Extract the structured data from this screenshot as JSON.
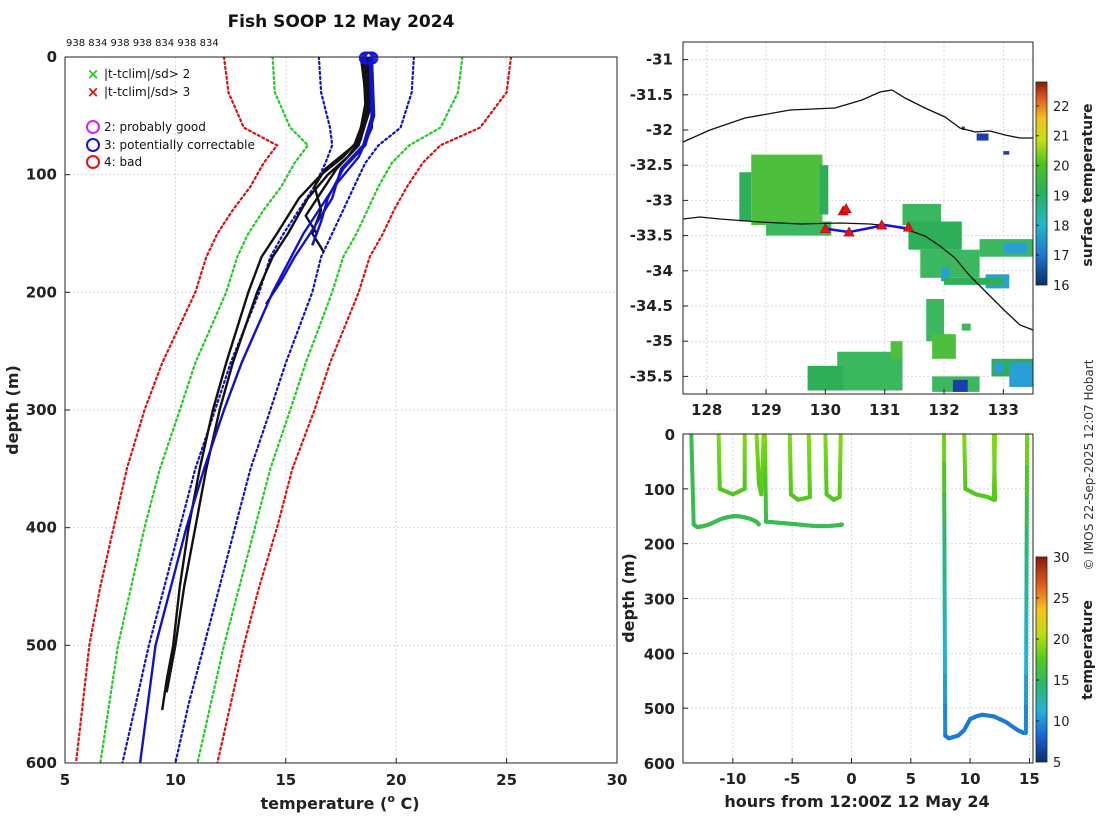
{
  "chart_data": [
    {
      "type": "line",
      "name": "profile-panel",
      "title": "Fish SOOP 12 May 2024",
      "platform_ids": "938 834 938 938 834 938 834",
      "xlabel": "temperature (°C)",
      "xlabel_main": "temperature (",
      "xlabel_sup": "o",
      "xlabel_tail": " C)",
      "ylabel": "depth (m)",
      "xlim": [
        5,
        30
      ],
      "ylim": [
        600,
        0
      ],
      "xticks": [
        5,
        10,
        15,
        20,
        25,
        30
      ],
      "yticks": [
        0,
        100,
        200,
        300,
        400,
        500,
        600
      ],
      "legend": [
        {
          "marker": "x",
          "color": "#22cc22",
          "label": "|t-tclim|/sd> 2"
        },
        {
          "marker": "x",
          "color": "#dd1111",
          "label": "|t-tclim|/sd> 3"
        },
        {
          "marker": "o",
          "color": "#dd22dd",
          "label": "2: probably good"
        },
        {
          "marker": "o",
          "color": "#1111ee",
          "label": "3: potentially correctable"
        },
        {
          "marker": "o",
          "color": "#ee1111",
          "label": "4: bad"
        }
      ],
      "climatology_envelopes": [
        {
          "name": "clim-red-left",
          "color": "#dd1111",
          "depths": [
            0,
            30,
            60,
            75,
            90,
            110,
            130,
            150,
            170,
            200,
            260,
            300,
            350,
            400,
            450,
            500,
            550,
            600
          ],
          "temps": [
            12.2,
            12.4,
            13.1,
            14.6,
            14.0,
            13.4,
            12.6,
            11.9,
            11.4,
            10.9,
            9.4,
            8.6,
            7.8,
            7.2,
            6.6,
            6.1,
            5.8,
            5.5
          ]
        },
        {
          "name": "clim-green-left",
          "color": "#22cc22",
          "depths": [
            0,
            30,
            60,
            75,
            90,
            110,
            130,
            150,
            170,
            200,
            260,
            300,
            350,
            400,
            450,
            500,
            550,
            600
          ],
          "temps": [
            14.4,
            14.5,
            15.2,
            16.0,
            15.4,
            14.8,
            14.0,
            13.3,
            12.8,
            12.3,
            10.9,
            10.2,
            9.3,
            8.6,
            8.0,
            7.4,
            7.0,
            6.6
          ]
        },
        {
          "name": "clim-blue-left",
          "color": "#1111cc",
          "depths": [
            0,
            30,
            60,
            75,
            90,
            110,
            130,
            150,
            170,
            200,
            260,
            300,
            350,
            400,
            450,
            500,
            550,
            600
          ],
          "temps": [
            16.5,
            16.6,
            17.0,
            17.1,
            16.8,
            16.3,
            15.6,
            14.9,
            14.3,
            13.8,
            12.5,
            11.8,
            10.9,
            10.2,
            9.5,
            8.8,
            8.2,
            7.6
          ]
        },
        {
          "name": "clim-blue-right",
          "color": "#1111cc",
          "depths": [
            0,
            30,
            60,
            75,
            90,
            110,
            130,
            150,
            170,
            200,
            260,
            300,
            350,
            400,
            450,
            500,
            550,
            600
          ],
          "temps": [
            20.8,
            20.7,
            20.2,
            19.2,
            18.6,
            18.1,
            17.6,
            17.1,
            16.6,
            16.2,
            15.0,
            14.3,
            13.4,
            12.7,
            12.0,
            11.3,
            10.6,
            10.0
          ]
        },
        {
          "name": "clim-green-right",
          "color": "#22cc22",
          "depths": [
            0,
            30,
            60,
            75,
            90,
            110,
            130,
            150,
            170,
            200,
            260,
            300,
            350,
            400,
            450,
            500,
            550,
            600
          ],
          "temps": [
            23.0,
            22.8,
            22.0,
            20.6,
            19.8,
            19.2,
            18.7,
            18.2,
            17.6,
            17.1,
            15.9,
            15.2,
            14.3,
            13.6,
            12.9,
            12.2,
            11.6,
            11.0
          ]
        },
        {
          "name": "clim-red-right",
          "color": "#dd1111",
          "depths": [
            0,
            30,
            60,
            75,
            90,
            110,
            130,
            150,
            170,
            200,
            260,
            300,
            350,
            400,
            450,
            500,
            550,
            600
          ],
          "temps": [
            25.2,
            25.0,
            23.8,
            22.0,
            21.2,
            20.5,
            19.9,
            19.4,
            18.8,
            18.3,
            17.0,
            16.3,
            15.3,
            14.6,
            13.8,
            13.1,
            12.5,
            11.9
          ]
        }
      ],
      "profiles": [
        {
          "color": "#111111",
          "depths": [
            0,
            40,
            70,
            85,
            100,
            120,
            150,
            170,
            200,
            260,
            300,
            350,
            400,
            450,
            500,
            530,
            555
          ],
          "temps": [
            18.5,
            18.6,
            18.3,
            17.6,
            16.6,
            15.6,
            14.6,
            13.9,
            13.3,
            12.3,
            11.7,
            11.1,
            10.6,
            10.2,
            9.9,
            9.6,
            9.4
          ]
        },
        {
          "color": "#111111",
          "depths": [
            0,
            40,
            70,
            85,
            100,
            120,
            150,
            170,
            200,
            260,
            300,
            350,
            400,
            450,
            500,
            540
          ],
          "temps": [
            18.6,
            18.7,
            18.4,
            17.8,
            16.9,
            16.0,
            15.1,
            14.4,
            13.7,
            12.6,
            12.0,
            11.4,
            10.9,
            10.4,
            10.0,
            9.6
          ]
        },
        {
          "color": "#111111",
          "depths": [
            0,
            45,
            75,
            95,
            110,
            130,
            150,
            165
          ],
          "temps": [
            18.4,
            18.7,
            18.1,
            16.8,
            16.3,
            16.6,
            16.2,
            16.7
          ]
        },
        {
          "color": "#111111",
          "depths": [
            0,
            45,
            75,
            95,
            115,
            135,
            150,
            160
          ],
          "temps": [
            18.7,
            18.8,
            18.3,
            17.3,
            16.6,
            15.9,
            16.4,
            16.2
          ]
        },
        {
          "color": "#1111cc",
          "depths": [
            0,
            50,
            75,
            95,
            120,
            150,
            170,
            190,
            210
          ],
          "temps": [
            18.8,
            18.9,
            18.5,
            17.5,
            17.1,
            16.1,
            15.4,
            14.8,
            14.1
          ]
        },
        {
          "color": "#1111cc",
          "depths": [
            0,
            50,
            75,
            95,
            120,
            140,
            160
          ],
          "temps": [
            18.9,
            19.0,
            18.6,
            17.6,
            16.9,
            16.6,
            16.2
          ]
        },
        {
          "color": "#1111cc",
          "depths": [
            0,
            60,
            85,
            110,
            150,
            200,
            260,
            300,
            350,
            400,
            450,
            500,
            600
          ],
          "temps": [
            18.8,
            18.9,
            18.3,
            17.2,
            15.8,
            14.4,
            13.0,
            12.2,
            11.3,
            10.5,
            9.8,
            9.1,
            8.4
          ]
        }
      ],
      "surface_markers": 7
    },
    {
      "type": "heatmap",
      "name": "map-panel",
      "colorbar_label": "surface temperature",
      "colorbar_ticks": [
        16,
        17,
        18,
        19,
        20,
        21,
        22
      ],
      "colorbar_range": [
        16,
        22.8
      ],
      "xlim": [
        127.6,
        133.5
      ],
      "ylim": [
        -35.75,
        -30.75
      ],
      "xticks": [
        128,
        129,
        130,
        131,
        132,
        133
      ],
      "yticks": [
        -31,
        -31.5,
        -32,
        -32.5,
        -33,
        -33.5,
        -34,
        -34.5,
        -35,
        -35.5
      ],
      "sst_patch_temp": 18.8,
      "track": {
        "lon": [
          130.0,
          130.4,
          131.0,
          131.4
        ],
        "lat": [
          -33.4,
          -33.45,
          -33.35,
          -33.4
        ]
      },
      "flag_markers": {
        "lon": [
          130.3,
          130.4,
          130.0,
          130.95,
          131.4,
          130.35
        ],
        "lat": [
          -33.15,
          -33.45,
          -33.4,
          -33.35,
          -33.38,
          -33.12
        ]
      }
    },
    {
      "type": "scatter",
      "name": "time-depth-panel",
      "xlabel": "hours from 12:00Z 12 May 24",
      "ylabel": "depth (m)",
      "colorbar_label": "temperature",
      "colorbar_ticks": [
        5,
        10,
        15,
        20,
        25,
        30
      ],
      "colorbar_range": [
        5,
        30
      ],
      "xlim": [
        -14.2,
        15.3
      ],
      "ylim": [
        600,
        0
      ],
      "xticks": [
        -10,
        -5,
        0,
        5,
        10,
        15
      ],
      "yticks": [
        0,
        100,
        200,
        300,
        400,
        500,
        600
      ],
      "drops": [
        {
          "hours": [
            -13.5,
            -13.3,
            -13.0,
            -12.5,
            -12.0,
            -11.5,
            -11.0,
            -10.5,
            -10.0,
            -9.5,
            -9.0,
            -8.5,
            -8.0,
            -7.8
          ],
          "depths": [
            0,
            165,
            170,
            168,
            165,
            160,
            155,
            152,
            150,
            150,
            152,
            155,
            160,
            165
          ],
          "temps": [
            15,
            15,
            15,
            15,
            15,
            15,
            15,
            15,
            15,
            15,
            15,
            15,
            15,
            15
          ]
        },
        {
          "hours": [
            -11.2,
            -11.1,
            -10.0,
            -9.0
          ],
          "depths": [
            0,
            100,
            110,
            100
          ],
          "temps": [
            17,
            16,
            16,
            16
          ]
        },
        {
          "hours": [
            -9.0,
            -9.0
          ],
          "depths": [
            0,
            100
          ],
          "temps": [
            17,
            16
          ]
        },
        {
          "hours": [
            -8.0,
            -7.8,
            -7.6,
            -7.4
          ],
          "depths": [
            0,
            90,
            110,
            0
          ],
          "temps": [
            17,
            16,
            16,
            17
          ]
        },
        {
          "hours": [
            -7.3,
            -7.2,
            -6.0,
            -5.0,
            -4.0,
            -3.0,
            -2.0,
            -1.0,
            -0.8
          ],
          "depths": [
            0,
            160,
            162,
            164,
            166,
            168,
            168,
            166,
            165
          ],
          "temps": [
            17,
            15,
            15,
            15,
            15,
            15,
            15,
            15,
            15
          ]
        },
        {
          "hours": [
            -5.2,
            -5.1,
            -4.5,
            -3.5,
            -3.6
          ],
          "depths": [
            0,
            110,
            120,
            115,
            0
          ],
          "temps": [
            17,
            16,
            16,
            16,
            17
          ]
        },
        {
          "hours": [
            -2.2,
            -2.1,
            -1.5,
            -1.0,
            -0.9
          ],
          "depths": [
            0,
            110,
            120,
            115,
            0
          ],
          "temps": [
            17,
            16,
            16,
            16,
            17
          ]
        },
        {
          "hours": [
            7.8,
            7.9,
            8.2,
            9.0,
            9.5,
            10.0,
            10.5,
            11.0,
            12.0,
            13.0,
            14.0,
            14.5,
            14.7,
            14.8
          ],
          "depths": [
            0,
            550,
            555,
            550,
            540,
            520,
            515,
            512,
            515,
            525,
            540,
            545,
            545,
            0
          ],
          "temps": [
            17,
            9,
            9,
            9,
            9,
            9,
            9,
            9,
            9,
            9,
            9,
            9,
            9,
            17
          ]
        },
        {
          "hours": [
            9.5,
            9.6,
            10.5,
            11.5,
            12.0,
            12.1
          ],
          "depths": [
            0,
            100,
            110,
            115,
            120,
            0
          ],
          "temps": [
            17,
            16,
            16,
            16,
            16,
            17
          ]
        },
        {
          "hours": [
            12.0,
            12.1
          ],
          "depths": [
            0,
            120
          ],
          "temps": [
            17,
            16
          ]
        }
      ]
    }
  ],
  "credit": "© IMOS 22-Sep-2025 12:07 Hobart"
}
